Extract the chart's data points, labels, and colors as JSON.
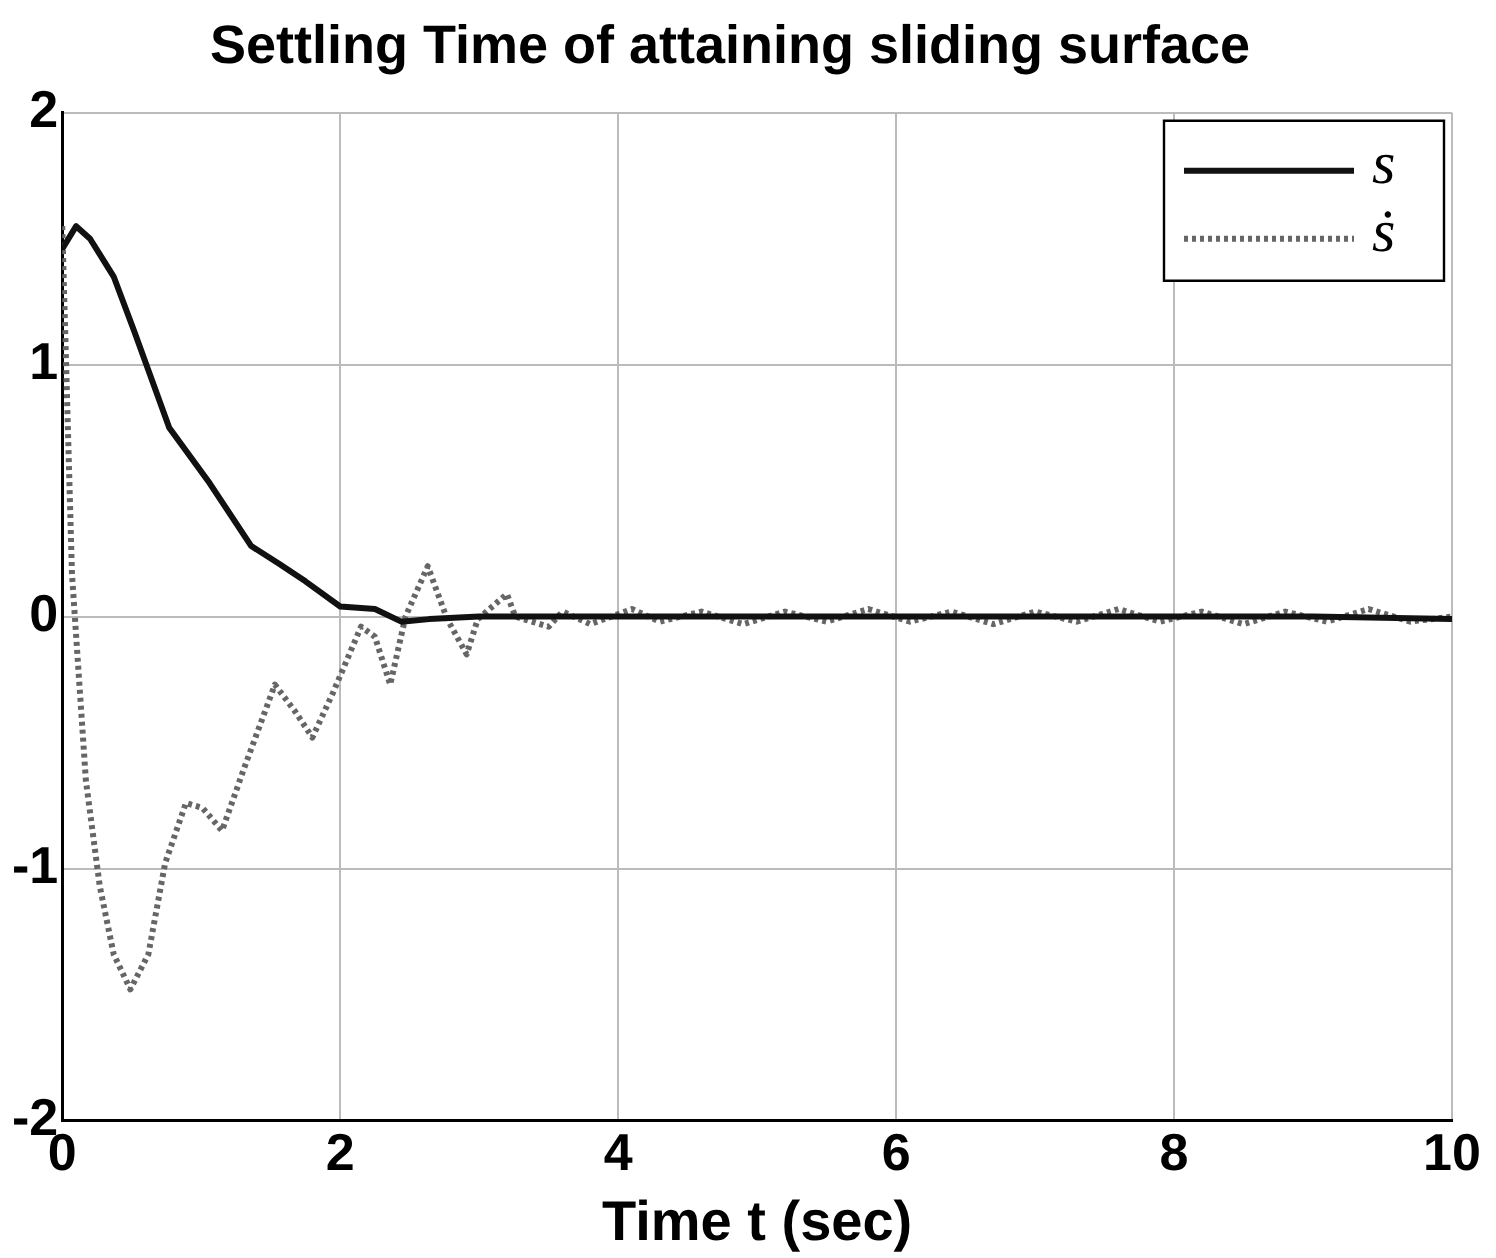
{
  "chart_data": {
    "type": "line",
    "title": "Settling Time of attaining sliding surface",
    "xlabel": "Time t (sec)",
    "xlim": [
      0,
      10
    ],
    "xticks": [
      0,
      2,
      4,
      6,
      8,
      10
    ],
    "ylim": [
      -2,
      2
    ],
    "yticks": [
      -2,
      -1,
      0,
      1,
      2
    ],
    "grid": true,
    "legend": "top right",
    "marker": "none",
    "series": [
      {
        "name": "s",
        "color": "#111111",
        "line_style": "solid",
        "x": [
          0,
          0.1,
          0.2,
          0.37,
          0.52,
          0.77,
          1.06,
          1.36,
          1.56,
          1.75,
          2.0,
          2.25,
          2.44,
          2.64,
          3.0,
          4,
          5,
          6,
          7,
          8,
          9,
          10
        ],
        "values": [
          1.46,
          1.55,
          1.5,
          1.35,
          1.13,
          0.75,
          0.53,
          0.28,
          0.21,
          0.14,
          0.04,
          0.03,
          -0.02,
          -0.01,
          0,
          0,
          0,
          0,
          0,
          0,
          0,
          -0.01
        ]
      },
      {
        "name": "ṡ",
        "color": "#666666",
        "line_style": "dotted",
        "x": [
          0,
          0.07,
          0.17,
          0.27,
          0.37,
          0.49,
          0.62,
          0.74,
          0.89,
          1.01,
          1.15,
          1.31,
          1.53,
          1.68,
          1.8,
          1.95,
          2.15,
          2.25,
          2.36,
          2.47,
          2.63,
          2.77,
          2.91,
          2.99,
          3.2,
          3.26,
          3.5,
          3.6,
          3.8,
          4.1,
          4.3,
          4.6,
          4.9,
          5.2,
          5.5,
          5.8,
          6.1,
          6.4,
          6.7,
          7.0,
          7.3,
          7.6,
          7.9,
          8.2,
          8.5,
          8.8,
          9.1,
          9.4,
          9.7,
          10
        ],
        "values": [
          1.55,
          0.17,
          -0.65,
          -1.07,
          -1.34,
          -1.48,
          -1.34,
          -0.98,
          -0.74,
          -0.76,
          -0.85,
          -0.6,
          -0.27,
          -0.38,
          -0.48,
          -0.3,
          -0.04,
          -0.08,
          -0.27,
          0,
          0.2,
          -0.01,
          -0.15,
          -0.01,
          0.09,
          0,
          -0.04,
          0.02,
          -0.03,
          0.03,
          -0.02,
          0.02,
          -0.03,
          0.02,
          -0.02,
          0.03,
          -0.02,
          0.02,
          -0.03,
          0.02,
          -0.02,
          0.03,
          -0.02,
          0.02,
          -0.03,
          0.02,
          -0.02,
          0.03,
          -0.02,
          0
        ]
      }
    ]
  }
}
